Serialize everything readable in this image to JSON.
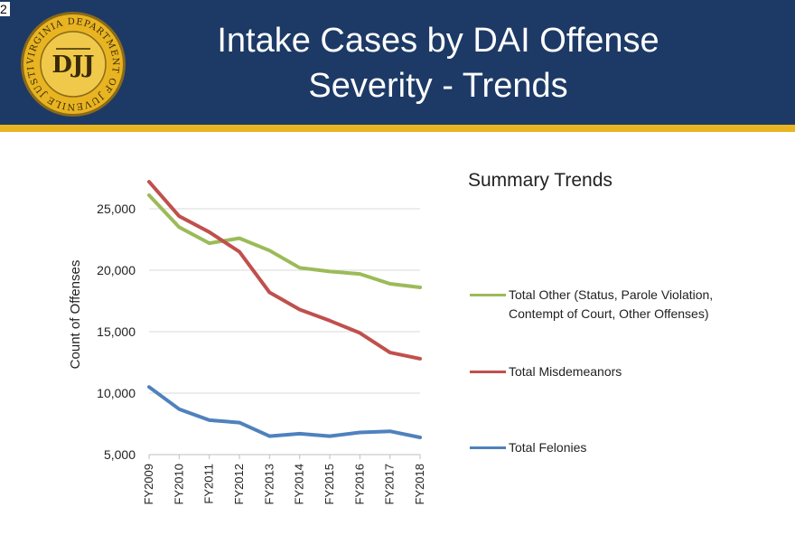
{
  "slide_number": "2",
  "title_line1": "Intake Cases by DAI Offense",
  "title_line2": "Severity - Trends",
  "logo": {
    "ring_text": "VIRGINIA DEPARTMENT OF JUVENILE JUSTICE",
    "monogram": "DJJ",
    "ring_color": "#e8b422",
    "ring_edge": "#8a6a18"
  },
  "colors": {
    "header_bg": "#1d3a66",
    "header_accent": "#e8b422",
    "gridline": "#d9d9d9"
  },
  "legend_title": "Summary Trends",
  "chart_data": {
    "type": "line",
    "title": "",
    "xlabel": "",
    "ylabel": "Count of Offenses",
    "categories": [
      "FY2009",
      "FY2010",
      "FY2011",
      "FY2012",
      "FY2013",
      "FY2014",
      "FY2015",
      "FY2016",
      "FY2017",
      "FY2018"
    ],
    "ylim": [
      5000,
      25000
    ],
    "yticks": [
      5000,
      10000,
      15000,
      20000,
      25000
    ],
    "ytick_labels": [
      "5,000",
      "10,000",
      "15,000",
      "20,000",
      "25,000"
    ],
    "grid": true,
    "legend_position": "right",
    "series": [
      {
        "name": "Total Other (Status, Parole Violation, Contempt of Court, Other Offenses)",
        "label_lines": [
          "Total Other (Status, Parole Violation,",
          "Contempt of Court, Other Offenses)"
        ],
        "color": "#9bbb59",
        "values": [
          26100,
          23500,
          22200,
          22600,
          21600,
          20200,
          19900,
          19700,
          18900,
          18600
        ]
      },
      {
        "name": "Total Misdemeanors",
        "label_lines": [
          "Total Misdemeanors"
        ],
        "color": "#c0504d",
        "values": [
          27200,
          24400,
          23100,
          21500,
          18200,
          16800,
          15900,
          14900,
          13300,
          12800
        ]
      },
      {
        "name": "Total Felonies",
        "label_lines": [
          "Total Felonies"
        ],
        "color": "#4f81bd",
        "values": [
          10500,
          8700,
          7800,
          7600,
          6500,
          6700,
          6500,
          6800,
          6900,
          6400
        ]
      }
    ]
  }
}
